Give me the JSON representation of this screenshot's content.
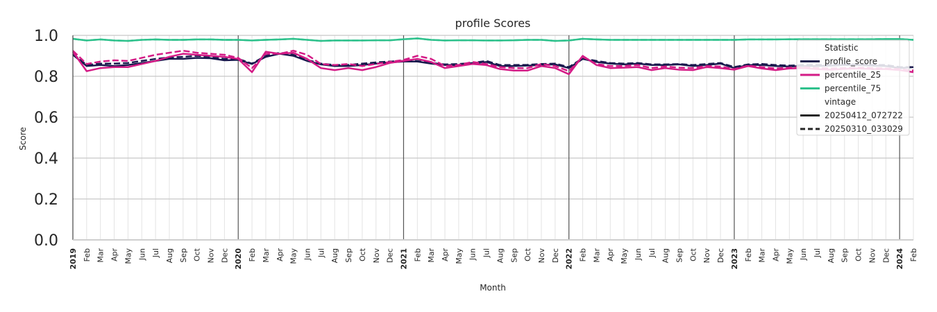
{
  "chart_data": {
    "type": "line",
    "title": "profile Scores",
    "xlabel": "Month",
    "ylabel": "Score",
    "ylim": [
      0.0,
      1.0
    ],
    "yticks": [
      "0.0",
      "0.2",
      "0.4",
      "0.6",
      "0.8",
      "1.0"
    ],
    "x_ticks": [
      "2019",
      "Feb",
      "Mar",
      "Apr",
      "May",
      "Jun",
      "Jul",
      "Aug",
      "Sep",
      "Oct",
      "Nov",
      "Dec",
      "2020",
      "Feb",
      "Mar",
      "Apr",
      "May",
      "Jun",
      "Jul",
      "Aug",
      "Sep",
      "Oct",
      "Nov",
      "Dec",
      "2021",
      "Feb",
      "Mar",
      "Apr",
      "May",
      "Jun",
      "Jul",
      "Aug",
      "Sep",
      "Oct",
      "Nov",
      "Dec",
      "2022",
      "Feb",
      "Mar",
      "Apr",
      "May",
      "Jun",
      "Jul",
      "Aug",
      "Sep",
      "Oct",
      "Nov",
      "Dec",
      "2023",
      "Feb",
      "Mar",
      "Apr",
      "May",
      "Jun",
      "Jul",
      "Aug",
      "Sep",
      "Oct",
      "Nov",
      "Dec",
      "2024",
      "Feb"
    ],
    "year_ticks": [
      "2019",
      "2020",
      "2021",
      "2022",
      "2023",
      "2024"
    ],
    "grid": true,
    "legend": {
      "placement": "top-right",
      "statistic_title": "Statistic",
      "statistic": [
        {
          "name": "profile_score",
          "color": "#1a1a4e"
        },
        {
          "name": "percentile_25",
          "color": "#d41b86"
        },
        {
          "name": "percentile_75",
          "color": "#2ec18c"
        }
      ],
      "vintage_title": "vintage",
      "vintage": [
        {
          "name": "20250412_072722",
          "style": "solid"
        },
        {
          "name": "20250310_033029",
          "style": "dashed"
        }
      ]
    },
    "series": [
      {
        "name": "profile_score",
        "vintage": "20250412_072722",
        "color": "#1a1a4e",
        "style": "solid",
        "values": [
          0.905,
          0.85,
          0.855,
          0.85,
          0.855,
          0.865,
          0.875,
          0.885,
          0.885,
          0.89,
          0.888,
          0.878,
          0.88,
          0.86,
          0.895,
          0.91,
          0.9,
          0.875,
          0.858,
          0.85,
          0.85,
          0.855,
          0.862,
          0.868,
          0.872,
          0.872,
          0.862,
          0.855,
          0.855,
          0.862,
          0.87,
          0.85,
          0.85,
          0.852,
          0.855,
          0.858,
          0.84,
          0.885,
          0.87,
          0.862,
          0.858,
          0.862,
          0.855,
          0.855,
          0.858,
          0.85,
          0.855,
          0.862,
          0.84,
          0.855,
          0.855,
          0.85,
          0.848,
          0.85,
          0.85,
          0.852,
          0.855,
          0.855,
          0.852,
          0.85,
          0.84,
          0.845
        ]
      },
      {
        "name": "profile_score",
        "vintage": "20250310_033029",
        "color": "#1a1a4e",
        "style": "dashed",
        "values": [
          0.91,
          0.855,
          0.862,
          0.862,
          0.865,
          0.875,
          0.885,
          0.892,
          0.895,
          0.9,
          0.895,
          0.885,
          0.885,
          0.862,
          0.9,
          0.915,
          0.905,
          0.88,
          0.862,
          0.855,
          0.855,
          0.862,
          0.868,
          0.872,
          0.875,
          0.875,
          0.865,
          0.858,
          0.86,
          0.865,
          0.875,
          0.855,
          0.855,
          0.856,
          0.86,
          0.862,
          0.845,
          0.888,
          0.875,
          0.865,
          0.862,
          0.865,
          0.858,
          0.858,
          0.86,
          0.855,
          0.86,
          0.865,
          0.845,
          0.858,
          0.86,
          0.855,
          0.852,
          0.855,
          0.855,
          0.856,
          0.858,
          0.858,
          0.856,
          0.855,
          0.845,
          0.845
        ]
      },
      {
        "name": "percentile_25",
        "vintage": "20250412_072722",
        "color": "#d41b86",
        "style": "solid",
        "values": [
          0.92,
          0.825,
          0.84,
          0.845,
          0.845,
          0.86,
          0.875,
          0.895,
          0.91,
          0.905,
          0.9,
          0.895,
          0.885,
          0.82,
          0.92,
          0.91,
          0.915,
          0.885,
          0.84,
          0.83,
          0.84,
          0.83,
          0.845,
          0.865,
          0.875,
          0.885,
          0.87,
          0.84,
          0.85,
          0.86,
          0.855,
          0.835,
          0.828,
          0.828,
          0.85,
          0.84,
          0.81,
          0.9,
          0.855,
          0.84,
          0.842,
          0.845,
          0.83,
          0.84,
          0.832,
          0.83,
          0.845,
          0.84,
          0.832,
          0.85,
          0.838,
          0.83,
          0.838,
          0.84,
          0.835,
          0.832,
          0.836,
          0.838,
          0.835,
          0.835,
          0.83,
          0.82
        ]
      },
      {
        "name": "percentile_25",
        "vintage": "20250310_033029",
        "color": "#d41b86",
        "style": "dashed",
        "values": [
          0.925,
          0.86,
          0.872,
          0.878,
          0.875,
          0.89,
          0.905,
          0.915,
          0.925,
          0.915,
          0.91,
          0.905,
          0.89,
          0.84,
          0.91,
          0.91,
          0.925,
          0.905,
          0.86,
          0.855,
          0.86,
          0.85,
          0.86,
          0.87,
          0.88,
          0.9,
          0.885,
          0.85,
          0.855,
          0.87,
          0.86,
          0.845,
          0.84,
          0.84,
          0.86,
          0.85,
          0.825,
          0.895,
          0.86,
          0.85,
          0.85,
          0.855,
          0.84,
          0.848,
          0.842,
          0.84,
          0.85,
          0.848,
          0.835,
          0.852,
          0.845,
          0.838,
          0.842,
          0.845,
          0.84,
          0.838,
          0.84,
          0.842,
          0.84,
          0.838,
          0.835,
          0.828
        ]
      },
      {
        "name": "percentile_75",
        "vintage": "20250412_072722",
        "color": "#2ec18c",
        "style": "solid",
        "values": [
          0.983,
          0.975,
          0.98,
          0.975,
          0.973,
          0.978,
          0.98,
          0.978,
          0.978,
          0.98,
          0.98,
          0.978,
          0.978,
          0.975,
          0.978,
          0.98,
          0.983,
          0.978,
          0.973,
          0.975,
          0.975,
          0.975,
          0.976,
          0.976,
          0.981,
          0.985,
          0.978,
          0.975,
          0.976,
          0.976,
          0.975,
          0.975,
          0.976,
          0.978,
          0.978,
          0.973,
          0.975,
          0.983,
          0.98,
          0.978,
          0.978,
          0.978,
          0.978,
          0.978,
          0.978,
          0.978,
          0.978,
          0.978,
          0.978,
          0.98,
          0.98,
          0.98,
          0.981,
          0.981,
          0.981,
          0.981,
          0.981,
          0.981,
          0.981,
          0.982,
          0.982,
          0.978
        ]
      },
      {
        "name": "percentile_75",
        "vintage": "20250310_033029",
        "color": "#2ec18c",
        "style": "dashed",
        "values": [
          0.983,
          0.975,
          0.98,
          0.975,
          0.973,
          0.978,
          0.98,
          0.978,
          0.978,
          0.98,
          0.98,
          0.978,
          0.978,
          0.975,
          0.978,
          0.98,
          0.983,
          0.978,
          0.973,
          0.975,
          0.975,
          0.975,
          0.976,
          0.976,
          0.981,
          0.985,
          0.978,
          0.975,
          0.976,
          0.976,
          0.975,
          0.975,
          0.976,
          0.978,
          0.978,
          0.973,
          0.975,
          0.983,
          0.98,
          0.978,
          0.978,
          0.978,
          0.978,
          0.978,
          0.978,
          0.978,
          0.978,
          0.978,
          0.978,
          0.98,
          0.98,
          0.98,
          0.981,
          0.981,
          0.981,
          0.981,
          0.981,
          0.981,
          0.981,
          0.982,
          0.982,
          0.978
        ]
      }
    ]
  }
}
